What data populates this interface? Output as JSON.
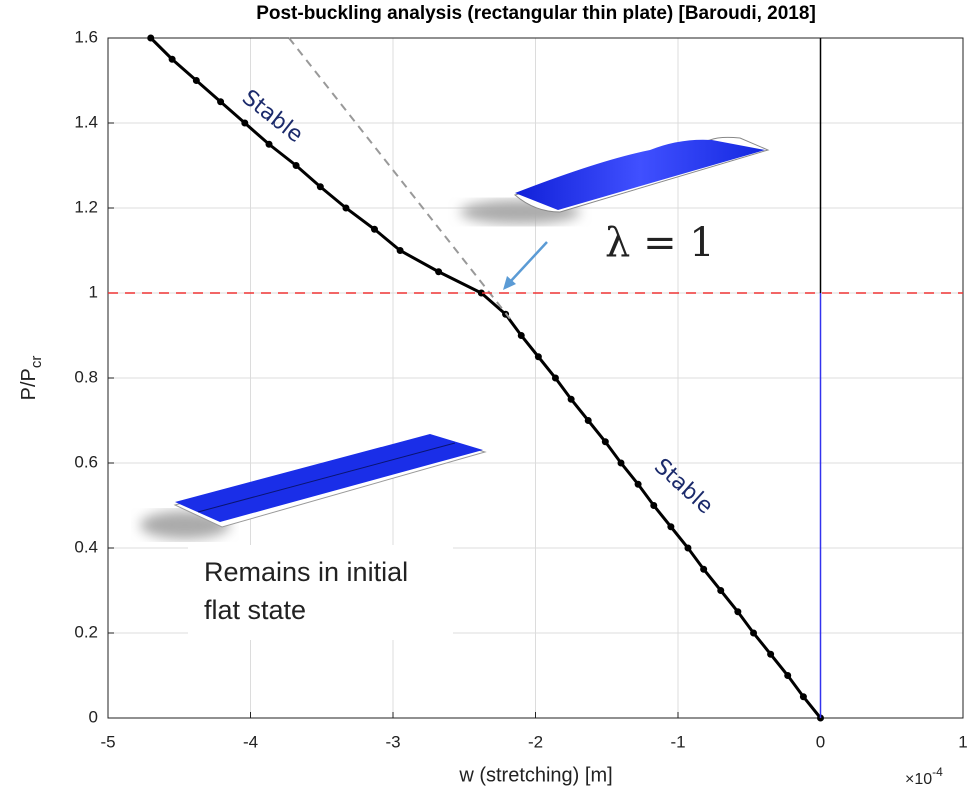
{
  "chart_data": {
    "type": "line",
    "title": "Post-buckling analysis (rectangular thin plate) [Baroudi, 2018]",
    "x_label": "w (stretching) [m]",
    "y_label": "P/P",
    "y_label_sub": "cr",
    "exponent_base": "×10",
    "exponent_power": "-4",
    "xlim": [
      -5,
      1
    ],
    "xticks": [
      -5,
      -4,
      -3,
      -2,
      -1,
      0,
      1
    ],
    "ylim": [
      0,
      1.6
    ],
    "yticks": [
      0,
      0.2,
      0.4,
      0.6,
      0.8,
      1,
      1.2,
      1.4,
      1.6
    ],
    "grid": true,
    "series": [
      {
        "color": "#000000",
        "dash": "none",
        "markers": true,
        "width": 3,
        "x": [
          0,
          -0.12,
          -0.23,
          -0.35,
          -0.47,
          -0.58,
          -0.7,
          -0.82,
          -0.93,
          -1.05,
          -1.17,
          -1.28,
          -1.4,
          -1.51,
          -1.63,
          -1.75,
          -1.86,
          -1.98,
          -2.1,
          -2.21,
          -2.38,
          -2.68,
          -2.95,
          -3.13,
          -3.33,
          -3.51,
          -3.68,
          -3.87,
          -4.04,
          -4.21,
          -4.38,
          -4.55,
          -4.7
        ],
        "values": [
          0,
          0.05,
          0.1,
          0.15,
          0.2,
          0.25,
          0.3,
          0.35,
          0.4,
          0.45,
          0.5,
          0.55,
          0.6,
          0.65,
          0.7,
          0.75,
          0.8,
          0.85,
          0.9,
          0.95,
          1,
          1.05,
          1.1,
          1.15,
          1.2,
          1.25,
          1.3,
          1.35,
          1.4,
          1.45,
          1.5,
          1.55,
          1.6
        ]
      },
      {
        "color": "#999999",
        "dash": "8,6",
        "markers": false,
        "width": 2,
        "x": [
          -3.73,
          -2.18
        ],
        "values": [
          1.6,
          0.94
        ]
      },
      {
        "color": "#ee3333",
        "dash": "10,7",
        "markers": false,
        "width": 1.5,
        "x": [
          -5,
          1
        ],
        "values": [
          1,
          1
        ]
      },
      {
        "color": "#3333ee",
        "dash": "none",
        "markers": false,
        "width": 1.5,
        "x": [
          0,
          0
        ],
        "values": [
          0,
          1
        ]
      },
      {
        "color": "#000000",
        "dash": "none",
        "markers": false,
        "width": 1.5,
        "x": [
          0,
          0
        ],
        "values": [
          1,
          1.6
        ]
      }
    ],
    "annotations": {
      "stable_upper": "Stable",
      "stable_lower": "Stable",
      "lambda": "λ =  1",
      "flat_line1": "Remains in initial",
      "flat_line2": "flat state"
    }
  }
}
